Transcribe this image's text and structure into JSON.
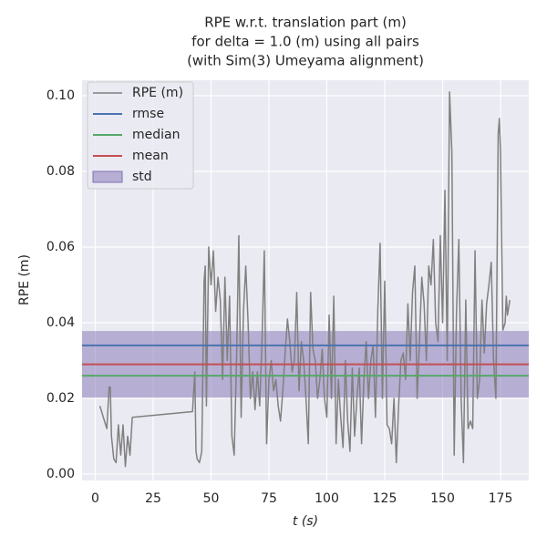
{
  "chart_data": {
    "type": "line",
    "title": [
      "RPE w.r.t. translation part (m)",
      "for delta = 1.0 (m) using all pairs",
      "(with Sim(3) Umeyama alignment)"
    ],
    "xlabel": "t (s)",
    "ylabel": "RPE (m)",
    "xlim": [
      -5.7,
      187.2
    ],
    "ylim": [
      -0.0017,
      0.1041
    ],
    "xticks": [
      0,
      25,
      50,
      75,
      100,
      125,
      150,
      175
    ],
    "yticks": [
      {
        "value": 0,
        "label": "0.00"
      },
      0.02,
      0.04,
      0.06,
      0.08,
      {
        "value": 0.1,
        "label": "0.10"
      }
    ],
    "grid": true,
    "legend": "upper left",
    "series": [
      {
        "name": "RPE (m)",
        "color": "#808080",
        "x": [
          2,
          4,
          5,
          6,
          6.5,
          7,
          8,
          9,
          10,
          11,
          12,
          13,
          14,
          15,
          16,
          42,
          43,
          43.5,
          44,
          45,
          46,
          47,
          47.5,
          48,
          49,
          50,
          51,
          52,
          53,
          54,
          55,
          56,
          57,
          58,
          59,
          60,
          61,
          62,
          63,
          64,
          65,
          66,
          67,
          68,
          69,
          70,
          71,
          72,
          73,
          74,
          75,
          76,
          77,
          78,
          79,
          80,
          81,
          82,
          83,
          84,
          85,
          86,
          87,
          88,
          89,
          90,
          91,
          92,
          93,
          94,
          95,
          96,
          97,
          98,
          99,
          100,
          101,
          102,
          103,
          104,
          105,
          106,
          107,
          108,
          109,
          110,
          111,
          112,
          113,
          114,
          115,
          116,
          117,
          118,
          119,
          120,
          121,
          122,
          123,
          124,
          125,
          126,
          127,
          128,
          129,
          130,
          131,
          132,
          133,
          134,
          135,
          136,
          137,
          138,
          139,
          140,
          141,
          142,
          143,
          144,
          145,
          146,
          147,
          148,
          149,
          150,
          151,
          152,
          153,
          154,
          155,
          156,
          157,
          158,
          159,
          160,
          161,
          162,
          163,
          164,
          165,
          166,
          167,
          168,
          169,
          170,
          171,
          172,
          173,
          174,
          174.5,
          175,
          176,
          177,
          177.5,
          178,
          179
        ],
        "values": [
          0.018,
          0.014,
          0.012,
          0.023,
          0.023,
          0.01,
          0.004,
          0.003,
          0.013,
          0.005,
          0.013,
          0.002,
          0.01,
          0.005,
          0.015,
          0.0165,
          0.027,
          0.006,
          0.004,
          0.003,
          0.006,
          0.051,
          0.055,
          0.018,
          0.06,
          0.05,
          0.059,
          0.043,
          0.052,
          0.046,
          0.025,
          0.052,
          0.03,
          0.047,
          0.01,
          0.005,
          0.03,
          0.063,
          0.015,
          0.043,
          0.055,
          0.04,
          0.02,
          0.027,
          0.017,
          0.027,
          0.018,
          0.035,
          0.059,
          0.008,
          0.025,
          0.03,
          0.022,
          0.025,
          0.018,
          0.014,
          0.022,
          0.032,
          0.041,
          0.035,
          0.027,
          0.03,
          0.048,
          0.022,
          0.035,
          0.03,
          0.02,
          0.008,
          0.048,
          0.033,
          0.03,
          0.02,
          0.025,
          0.033,
          0.02,
          0.015,
          0.042,
          0.02,
          0.047,
          0.008,
          0.025,
          0.015,
          0.007,
          0.03,
          0.014,
          0.006,
          0.028,
          0.01,
          0.02,
          0.028,
          0.008,
          0.025,
          0.035,
          0.02,
          0.03,
          0.034,
          0.015,
          0.043,
          0.061,
          0.02,
          0.051,
          0.013,
          0.012,
          0.008,
          0.02,
          0.003,
          0.018,
          0.03,
          0.032,
          0.025,
          0.045,
          0.03,
          0.048,
          0.055,
          0.02,
          0.035,
          0.052,
          0.045,
          0.03,
          0.055,
          0.05,
          0.062,
          0.04,
          0.035,
          0.063,
          0.04,
          0.075,
          0.03,
          0.101,
          0.085,
          0.005,
          0.043,
          0.062,
          0.02,
          0.003,
          0.046,
          0.012,
          0.014,
          0.012,
          0.059,
          0.02,
          0.025,
          0.046,
          0.032,
          0.045,
          0.05,
          0.056,
          0.03,
          0.02,
          0.09,
          0.094,
          0.085,
          0.038,
          0.04,
          0.047,
          0.042,
          0.046
        ]
      }
    ],
    "stats": [
      {
        "name": "rmse",
        "color": "#4c72b0",
        "value": 0.034
      },
      {
        "name": "median",
        "color": "#55a868",
        "value": 0.026
      },
      {
        "name": "mean",
        "color": "#c44e52",
        "value": 0.029
      }
    ],
    "std": {
      "name": "std",
      "color": "#8172b3",
      "value": 0.0088
    }
  }
}
